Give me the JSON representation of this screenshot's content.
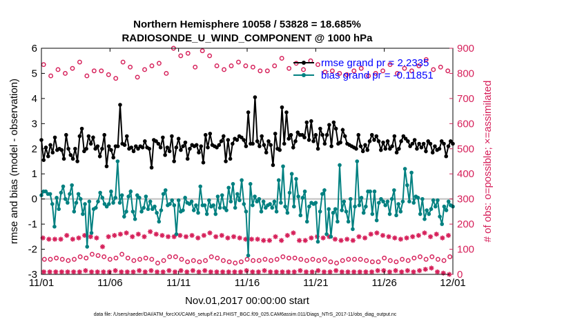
{
  "chart_data": {
    "type": "line",
    "title": "Northern Hemisphere 10058 / 53828 = 18.685%",
    "subtitle": "RADIOSONDE_U_WIND_COMPONENT @ 1000 hPa",
    "xlabel": "Nov.01,2017 00:00:00 start",
    "ylabel_left": "rmse and bias (model - observation)",
    "ylabel_right": "# of obs: o=possible; ×=assimilated",
    "footer": "data file: /Users/raeder/DAI/ATM_forcXX/CAM6_setup/f.e21.FHIST_BGC.f09_025.CAM6assim.011/Diags_NTrS_2017-11/obs_diag_output.nc",
    "xlim": [
      0,
      30
    ],
    "ylim_left": [
      -3,
      6
    ],
    "ylim_right": [
      0,
      900
    ],
    "x_ticks": [
      0,
      5,
      10,
      15,
      20,
      25,
      30
    ],
    "x_tick_labels": [
      "11/01",
      "11/06",
      "11/11",
      "11/16",
      "11/21",
      "11/26",
      "12/01"
    ],
    "y_ticks_left": [
      -3,
      -2,
      -1,
      0,
      1,
      2,
      3,
      4,
      5,
      6
    ],
    "y_ticks_right": [
      0,
      100,
      200,
      300,
      400,
      500,
      600,
      700,
      800,
      900
    ],
    "colors": {
      "rmse": "#000000",
      "bias": "#008080",
      "obs": "#d6205a",
      "zero": "#bfbfbf",
      "legend_text": "#0000ff"
    },
    "legend": {
      "rmse": "rmse grand pr = 2.2335",
      "bias": "bias grand pr = -0.11851"
    },
    "series": [
      {
        "name": "rmse",
        "values": [
          2.35,
          1.55,
          2.05,
          1.7,
          2.15,
          1.85,
          2.45,
          1.95,
          2.0,
          1.95,
          1.6,
          2.55,
          2.0,
          1.75,
          1.6,
          2.0,
          1.5,
          2.5,
          2.8,
          1.9,
          2.0,
          2.5,
          2.2,
          2.45,
          2.0,
          2.1,
          1.7,
          2.0,
          2.55,
          1.3,
          2.1,
          1.95,
          1.65,
          2.1,
          2.1,
          3.75,
          2.2,
          2.15,
          2.5,
          2.0,
          2.05,
          1.9,
          2.1,
          2.0,
          2.1,
          2.05,
          2.3,
          2.05,
          2.0,
          1.25,
          2.35,
          2.3,
          2.2,
          2.05,
          2.45,
          1.75,
          2.05,
          1.9,
          2.5,
          1.5,
          2.05,
          2.4,
          1.95,
          2.1,
          2.25,
          1.6,
          2.0,
          2.15,
          2.1,
          2.15,
          1.85,
          2.1,
          1.45,
          2.55,
          2.05,
          2.6,
          2.15,
          2.1,
          2.05,
          2.15,
          2.3,
          2.5,
          1.5,
          2.35,
          1.6,
          2.2,
          2.4,
          2.35,
          2.5,
          2.45,
          2.35,
          2.1,
          3.45,
          2.2,
          2.2,
          4.05,
          2.3,
          2.1,
          2.5,
          2.15,
          1.85,
          2.3,
          2.15,
          1.35,
          2.6,
          2.0,
          1.95,
          3.65,
          2.2,
          3.45,
          2.4,
          2.55,
          2.05,
          2.3,
          2.65,
          2.55,
          2.55,
          2.45,
          3.05,
          2.35,
          3.1,
          2.3,
          2.55,
          2.0,
          2.8,
          2.55,
          2.2,
          2.55,
          2.95,
          2.1,
          3.05,
          2.8,
          2.2,
          2.25,
          2.75,
          2.5,
          2.2,
          2.15,
          2.1,
          2.05,
          2.0,
          2.55,
          2.1,
          1.9,
          2.15,
          1.95,
          2.3,
          2.55,
          2.35,
          2.5,
          2.3,
          1.95,
          2.25,
          2.0,
          2.3,
          2.0,
          2.1,
          2.5,
          1.85,
          2.0,
          2.3,
          2.5,
          2.4,
          2.3,
          2.1,
          2.2,
          2.35,
          2.0,
          2.2,
          2.05,
          2.2,
          1.9,
          2.3,
          2.2,
          1.85,
          2.1,
          1.95,
          2.0,
          2.3,
          2.2,
          1.7,
          2.1,
          2.3,
          2.2
        ]
      },
      {
        "name": "bias",
        "values": [
          0.15,
          0.3,
          0.3,
          0.2,
          0.2,
          -0.2,
          -1.1,
          0.05,
          -0.4,
          0.25,
          0.5,
          0.0,
          -0.15,
          0.2,
          0.55,
          -0.5,
          -0.15,
          0.2,
          0.0,
          -0.6,
          -0.2,
          -1.9,
          -0.1,
          -1.35,
          -0.4,
          -0.35,
          -0.1,
          0.25,
          0.05,
          -0.2,
          -0.3,
          -0.2,
          0.3,
          -0.15,
          0.05,
          1.5,
          -0.15,
          0.15,
          -0.7,
          -0.5,
          0.1,
          0.3,
          -0.5,
          -0.8,
          0.15,
          0.05,
          -0.5,
          -0.35,
          0.1,
          -0.4,
          -0.1,
          -0.4,
          -0.3,
          -0.55,
          -0.9,
          -0.45,
          0.2,
          0.35,
          -0.25,
          -0.2,
          -0.05,
          -0.25,
          -1.4,
          -0.05,
          -0.5,
          -0.45,
          0.05,
          -0.15,
          -0.2,
          -0.1,
          -0.45,
          -0.25,
          -0.55,
          0.5,
          -0.25,
          -0.25,
          -0.6,
          -0.05,
          -0.3,
          -0.25,
          -0.6,
          0.1,
          -0.35,
          0.15,
          -0.35,
          -0.45,
          0.45,
          -0.1,
          0.6,
          -0.35,
          0.2,
          -0.05,
          0.75,
          -0.2,
          -0.5,
          -2.25,
          0.6,
          -0.25,
          0.1,
          -0.1,
          0.0,
          -0.5,
          -0.1,
          -0.35,
          -0.25,
          -0.2,
          -0.35,
          -0.1,
          -0.5,
          0.75,
          -0.15,
          1.3,
          -0.3,
          -0.55,
          0.25,
          1.0,
          -0.3,
          0.8,
          0.1,
          -0.65,
          0.05,
          0.3,
          -0.9,
          -0.3,
          -0.15,
          -0.2,
          -0.15,
          -1.7,
          -0.5,
          0.2,
          0.35,
          -1.4,
          -0.4,
          -1.5,
          -0.55,
          -0.4,
          -0.9,
          1.35,
          -0.45,
          -0.1,
          -0.5,
          -0.9,
          0.0,
          -1.2,
          -0.3,
          1.5,
          -0.25,
          0.05,
          -0.55,
          -0.3,
          0.3,
          0.3,
          -0.6,
          0.3,
          -0.85,
          -0.15,
          0.0,
          -0.1,
          -0.25,
          -0.1,
          -0.6,
          0.0,
          0.35,
          -0.65,
          -0.2,
          -0.5,
          -0.1,
          1.2,
          0.55,
          -0.1,
          1.05,
          -0.15,
          0.1,
          0.05,
          -0.6,
          0.0,
          -0.8,
          -0.45,
          -0.6,
          -0.4,
          -0.05,
          -0.3,
          -0.05,
          -0.7,
          -1.0,
          -0.3,
          -0.45,
          -0.1,
          -0.25,
          -0.3
        ]
      },
      {
        "name": "obs_possible_00Z",
        "values": [
          835,
          790,
          815,
          800,
          820,
          845,
          790,
          810,
          810,
          795,
          780,
          845,
          825,
          785,
          815,
          830,
          840,
          800,
          900,
          870,
          880,
          825,
          890,
          870,
          830,
          815,
          830,
          845,
          830,
          825,
          810,
          810,
          830,
          860,
          820,
          840,
          815,
          850,
          835,
          805,
          810,
          800,
          795,
          810,
          820,
          790,
          800,
          810,
          835,
          800,
          820,
          810,
          830,
          855,
          815,
          825,
          810
        ]
      },
      {
        "name": "obs_assimilated_00Z",
        "values": [
          145,
          140,
          140,
          140,
          155,
          140,
          145,
          155,
          150,
          145,
          110,
          150,
          155,
          160,
          165,
          150,
          160,
          150,
          170,
          160,
          155,
          150,
          150,
          155,
          150,
          155,
          145,
          155,
          165,
          150,
          155,
          145,
          150,
          145,
          140,
          140,
          140,
          135,
          135,
          150,
          135,
          155,
          165,
          135,
          135,
          145,
          150,
          145,
          150,
          140,
          135,
          140,
          135,
          150,
          145,
          160,
          165,
          155,
          150,
          145,
          140,
          145,
          150,
          155,
          165,
          150,
          160,
          145,
          155
        ]
      },
      {
        "name": "obs_possible_12Z",
        "values": [
          60,
          60,
          65,
          60,
          55,
          60,
          70,
          65,
          80,
          75,
          70,
          60,
          65,
          80,
          65,
          55,
          60,
          65,
          60,
          45,
          55,
          70,
          70,
          60,
          50,
          55,
          50,
          55,
          70,
          65,
          55,
          50,
          45,
          50,
          60,
          55,
          55,
          60,
          55,
          60,
          70,
          65,
          65,
          60,
          55,
          60,
          55,
          60,
          50,
          45,
          55,
          60,
          60,
          60,
          55,
          50,
          50,
          65,
          55,
          50,
          60,
          55,
          65,
          70,
          60,
          70,
          60,
          55,
          70
        ]
      },
      {
        "name": "obs_assimilated_12Z",
        "values": [
          10,
          10,
          10,
          10,
          10,
          10,
          10,
          15,
          10,
          10,
          10,
          10,
          15,
          10,
          10,
          10,
          15,
          10,
          15,
          10,
          10,
          15,
          10,
          15,
          10,
          15,
          10,
          15,
          10,
          10,
          10,
          10,
          10,
          10,
          15,
          10,
          10,
          15,
          10,
          10,
          10,
          10,
          10,
          15,
          10,
          10,
          15,
          10,
          10,
          15,
          10,
          10,
          10,
          10,
          10,
          10,
          15,
          15,
          10,
          15,
          10,
          15,
          10,
          15,
          20,
          25,
          10,
          5,
          0
        ]
      }
    ]
  }
}
